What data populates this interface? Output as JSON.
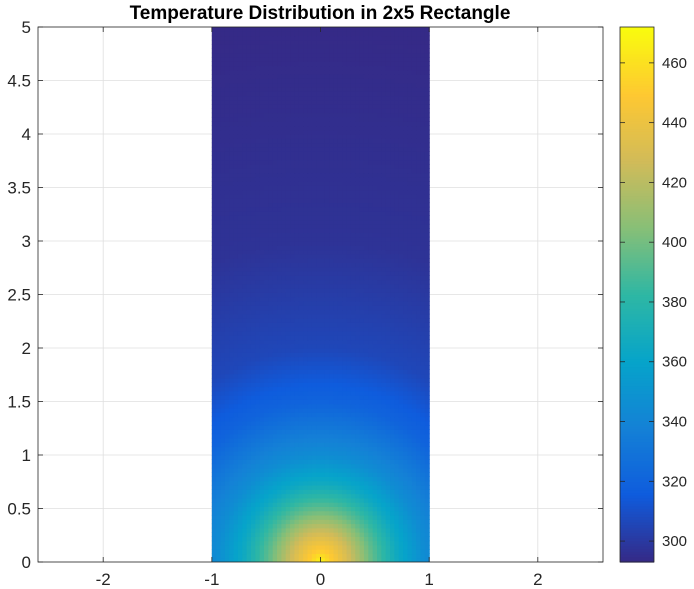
{
  "chart_data": {
    "type": "heatmap",
    "title": "Temperature Distribution in 2x5 Rectangle",
    "xlabel": "",
    "ylabel": "",
    "xlim": [
      -2.6,
      2.6
    ],
    "ylim": [
      0,
      5
    ],
    "xticks": [
      -2,
      -1,
      0,
      1,
      2
    ],
    "yticks": [
      0,
      0.5,
      1,
      1.5,
      2,
      2.5,
      3,
      3.5,
      4,
      4.5,
      5
    ],
    "xtick_labels": [
      "-2",
      "-1",
      "0",
      "1",
      "2"
    ],
    "ytick_labels": [
      "0",
      "0.5",
      "1",
      "1.5",
      "2",
      "2.5",
      "3",
      "3.5",
      "4",
      "4.5",
      "5"
    ],
    "grid": true,
    "domain": {
      "x": [
        -1,
        1
      ],
      "y": [
        0,
        5
      ]
    },
    "field": {
      "description_units": "temperature",
      "bottom_edge_value": 472,
      "far_field_value": 293,
      "sample_profile_at_x0": [
        {
          "y": 0.0,
          "t": 470
        },
        {
          "y": 0.1,
          "t": 452
        },
        {
          "y": 0.25,
          "t": 432
        },
        {
          "y": 0.5,
          "t": 395
        },
        {
          "y": 0.75,
          "t": 365
        },
        {
          "y": 1.0,
          "t": 345
        },
        {
          "y": 1.5,
          "t": 320
        },
        {
          "y": 2.0,
          "t": 306
        },
        {
          "y": 3.0,
          "t": 297
        },
        {
          "y": 5.0,
          "t": 293
        }
      ]
    },
    "colorbar": {
      "colormap": "parula",
      "range": [
        293,
        472
      ],
      "ticks": [
        300,
        320,
        340,
        360,
        380,
        400,
        420,
        440,
        460
      ],
      "tick_labels": [
        "300",
        "320",
        "340",
        "360",
        "380",
        "400",
        "420",
        "440",
        "460"
      ],
      "colors": [
        "#352a87",
        "#0f5cdd",
        "#1481d6",
        "#06a4ca",
        "#2eb7a4",
        "#87bf77",
        "#d1bb59",
        "#fec832",
        "#f9fb0e"
      ]
    }
  }
}
